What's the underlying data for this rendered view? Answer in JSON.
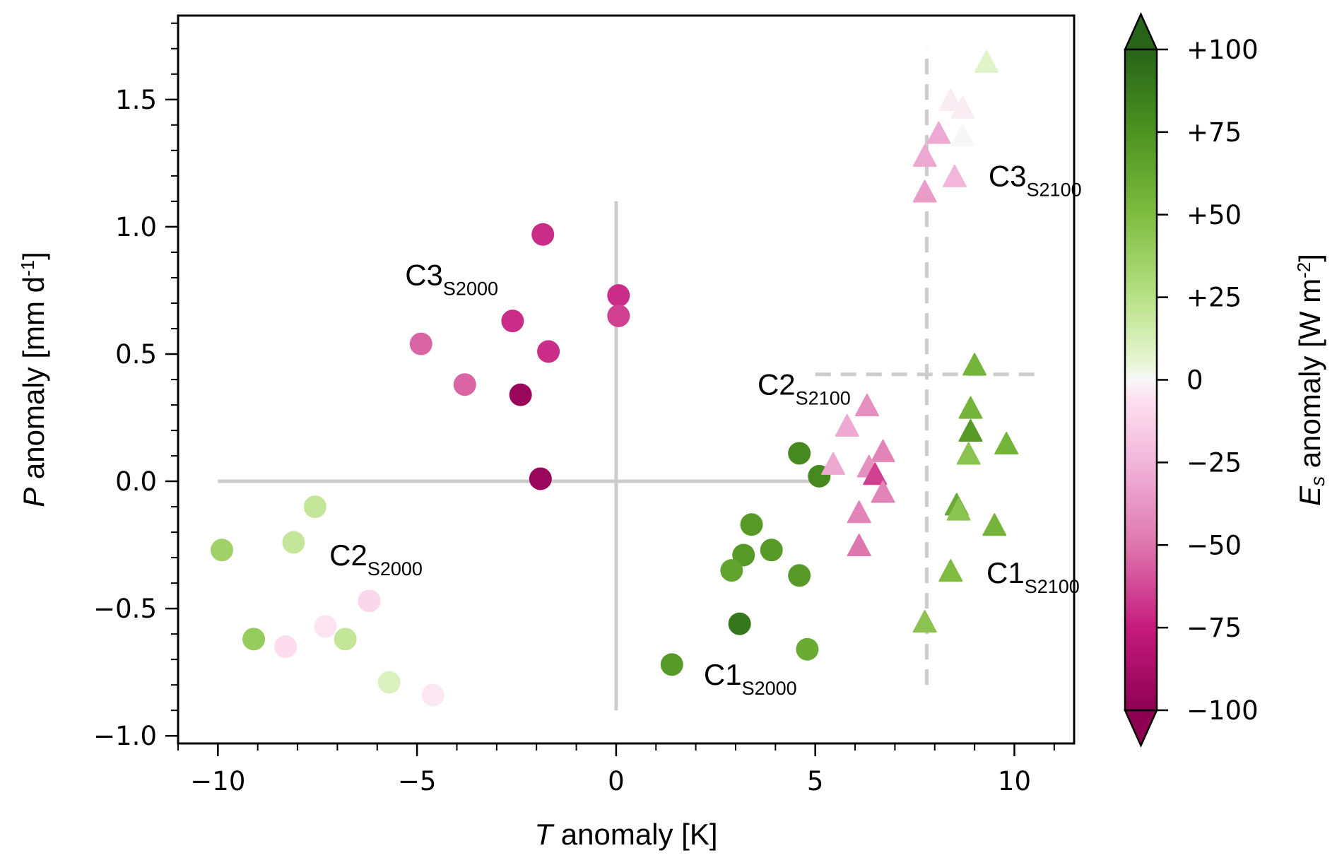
{
  "chart_data": {
    "type": "scatter",
    "title": "",
    "xlabel_italic": "T",
    "xlabel": "anomaly [K]",
    "ylabel_italic": "P",
    "ylabel": "anomaly [mm d",
    "ylabel_sup": "-1",
    "ylabel_end": "]",
    "xlim": [
      -11,
      11.5
    ],
    "ylim": [
      -1.03,
      1.83
    ],
    "xticks": [
      -10,
      -5,
      0,
      5,
      10
    ],
    "xtick_labels": [
      "−10",
      "−5",
      "0",
      "5",
      "10"
    ],
    "yticks": [
      -1.0,
      -0.5,
      0.0,
      0.5,
      1.0,
      1.5
    ],
    "ytick_labels": [
      "−1.0",
      "−0.5",
      "0.0",
      "0.5",
      "1.0",
      "1.5"
    ],
    "grid": false,
    "colorbar": {
      "label_italic": "E",
      "label_sub": "s",
      "label": " anomaly [W m",
      "label_sup": "-2",
      "label_end": "]",
      "range": [
        -100,
        100
      ],
      "extend": "both",
      "cmap": "PiYG",
      "ticks": [
        100,
        75,
        50,
        25,
        0,
        -25,
        -50,
        -75,
        -100
      ],
      "tick_labels": [
        "+100",
        "+75",
        "+50",
        "+25",
        "0",
        "−25",
        "−50",
        "−75",
        "−100"
      ]
    },
    "reference_lines": [
      {
        "name": "s2000-horizontal",
        "style": "solid",
        "color": "#cccccc",
        "orientation": "h",
        "y": 0.0,
        "x_from": -10.0,
        "x_to": 5.2
      },
      {
        "name": "s2000-vertical",
        "style": "solid",
        "color": "#cccccc",
        "orientation": "v",
        "x": 0.0,
        "y_from": -0.9,
        "y_to": 1.1
      },
      {
        "name": "s2100-vertical",
        "style": "dashed",
        "color": "#cccccc",
        "orientation": "v",
        "x": 7.8,
        "y_from": -0.8,
        "y_to": 1.7
      },
      {
        "name": "s2100-horizontal",
        "style": "dashed",
        "color": "#cccccc",
        "orientation": "h",
        "y": 0.42,
        "x_from": 5.0,
        "x_to": 10.5
      }
    ],
    "annotations": [
      {
        "main": "C3",
        "sub": "S2000",
        "x": -5.3,
        "y": 0.77
      },
      {
        "main": "C2",
        "sub": "S2000",
        "x": -7.2,
        "y": -0.33
      },
      {
        "main": "C1",
        "sub": "S2000",
        "x": 2.2,
        "y": -0.8
      },
      {
        "main": "C3",
        "sub": "S2100",
        "x": 9.35,
        "y": 1.16
      },
      {
        "main": "C2",
        "sub": "S2100",
        "x": 3.55,
        "y": 0.34
      },
      {
        "main": "C1",
        "sub": "S2100",
        "x": 9.3,
        "y": -0.4
      }
    ],
    "series": [
      {
        "name": "S2000",
        "marker": "circle",
        "points": [
          {
            "cluster": "C3",
            "x": -1.84,
            "y": 0.97,
            "es": -70
          },
          {
            "cluster": "C3",
            "x": 0.06,
            "y": 0.73,
            "es": -70
          },
          {
            "cluster": "C3",
            "x": 0.06,
            "y": 0.65,
            "es": -65
          },
          {
            "cluster": "C3",
            "x": -2.6,
            "y": 0.63,
            "es": -70
          },
          {
            "cluster": "C3",
            "x": -4.9,
            "y": 0.54,
            "es": -55
          },
          {
            "cluster": "C3",
            "x": -1.7,
            "y": 0.51,
            "es": -70
          },
          {
            "cluster": "C3",
            "x": -3.8,
            "y": 0.38,
            "es": -55
          },
          {
            "cluster": "C3",
            "x": -2.4,
            "y": 0.34,
            "es": -95
          },
          {
            "cluster": "C3",
            "x": -1.9,
            "y": 0.01,
            "es": -95
          },
          {
            "cluster": "C2",
            "x": -7.56,
            "y": -0.1,
            "es": 20
          },
          {
            "cluster": "C2",
            "x": -8.1,
            "y": -0.24,
            "es": 20
          },
          {
            "cluster": "C2",
            "x": -9.9,
            "y": -0.27,
            "es": 35
          },
          {
            "cluster": "C2",
            "x": -6.2,
            "y": -0.47,
            "es": -10
          },
          {
            "cluster": "C2",
            "x": -9.1,
            "y": -0.62,
            "es": 40
          },
          {
            "cluster": "C2",
            "x": -7.3,
            "y": -0.57,
            "es": -5
          },
          {
            "cluster": "C2",
            "x": -6.8,
            "y": -0.62,
            "es": 20
          },
          {
            "cluster": "C2",
            "x": -8.3,
            "y": -0.65,
            "es": -8
          },
          {
            "cluster": "C2",
            "x": -5.7,
            "y": -0.79,
            "es": 10
          },
          {
            "cluster": "C2",
            "x": -4.6,
            "y": -0.84,
            "es": -4
          },
          {
            "cluster": "C1",
            "x": 4.6,
            "y": 0.11,
            "es": 80
          },
          {
            "cluster": "C1",
            "x": 5.1,
            "y": 0.02,
            "es": 80
          },
          {
            "cluster": "C1",
            "x": 3.4,
            "y": -0.17,
            "es": 70
          },
          {
            "cluster": "C1",
            "x": 3.2,
            "y": -0.29,
            "es": 70
          },
          {
            "cluster": "C1",
            "x": 3.9,
            "y": -0.27,
            "es": 70
          },
          {
            "cluster": "C1",
            "x": 2.9,
            "y": -0.35,
            "es": 65
          },
          {
            "cluster": "C1",
            "x": 4.6,
            "y": -0.37,
            "es": 70
          },
          {
            "cluster": "C1",
            "x": 3.1,
            "y": -0.56,
            "es": 90
          },
          {
            "cluster": "C1",
            "x": 1.4,
            "y": -0.72,
            "es": 70
          },
          {
            "cluster": "C1",
            "x": 4.8,
            "y": -0.66,
            "es": 60
          }
        ]
      },
      {
        "name": "S2100",
        "marker": "triangle",
        "points": [
          {
            "cluster": "C3",
            "x": 9.3,
            "y": 1.64,
            "es": 8
          },
          {
            "cluster": "C3",
            "x": 8.4,
            "y": 1.49,
            "es": -3
          },
          {
            "cluster": "C3",
            "x": 8.7,
            "y": 1.46,
            "es": -3
          },
          {
            "cluster": "C3",
            "x": 8.1,
            "y": 1.36,
            "es": -30
          },
          {
            "cluster": "C3",
            "x": 8.7,
            "y": 1.35,
            "es": 0
          },
          {
            "cluster": "C3",
            "x": 7.75,
            "y": 1.27,
            "es": -30
          },
          {
            "cluster": "C3",
            "x": 8.5,
            "y": 1.19,
            "es": -25
          },
          {
            "cluster": "C3",
            "x": 7.75,
            "y": 1.13,
            "es": -35
          },
          {
            "cluster": "C2",
            "x": 6.3,
            "y": 0.29,
            "es": -40
          },
          {
            "cluster": "C2",
            "x": 5.8,
            "y": 0.21,
            "es": -30
          },
          {
            "cluster": "C2",
            "x": 6.7,
            "y": 0.11,
            "es": -45
          },
          {
            "cluster": "C2",
            "x": 5.45,
            "y": 0.06,
            "es": -30
          },
          {
            "cluster": "C2",
            "x": 6.35,
            "y": 0.05,
            "es": -40
          },
          {
            "cluster": "C2",
            "x": 6.5,
            "y": 0.02,
            "es": -65
          },
          {
            "cluster": "C2",
            "x": 6.7,
            "y": -0.05,
            "es": -45
          },
          {
            "cluster": "C2",
            "x": 6.1,
            "y": -0.13,
            "es": -45
          },
          {
            "cluster": "C2",
            "x": 6.1,
            "y": -0.26,
            "es": -50
          },
          {
            "cluster": "C1",
            "x": 9.0,
            "y": 0.45,
            "es": 55
          },
          {
            "cluster": "C1",
            "x": 8.9,
            "y": 0.28,
            "es": 55
          },
          {
            "cluster": "C1",
            "x": 8.9,
            "y": 0.19,
            "es": 70
          },
          {
            "cluster": "C1",
            "x": 9.8,
            "y": 0.14,
            "es": 55
          },
          {
            "cluster": "C1",
            "x": 8.85,
            "y": 0.1,
            "es": 45
          },
          {
            "cluster": "C1",
            "x": 8.55,
            "y": -0.1,
            "es": 60
          },
          {
            "cluster": "C1",
            "x": 8.6,
            "y": -0.12,
            "es": 45
          },
          {
            "cluster": "C1",
            "x": 9.5,
            "y": -0.18,
            "es": 55
          },
          {
            "cluster": "C1",
            "x": 8.4,
            "y": -0.36,
            "es": 50
          },
          {
            "cluster": "C1",
            "x": 7.75,
            "y": -0.56,
            "es": 45
          }
        ]
      }
    ]
  }
}
